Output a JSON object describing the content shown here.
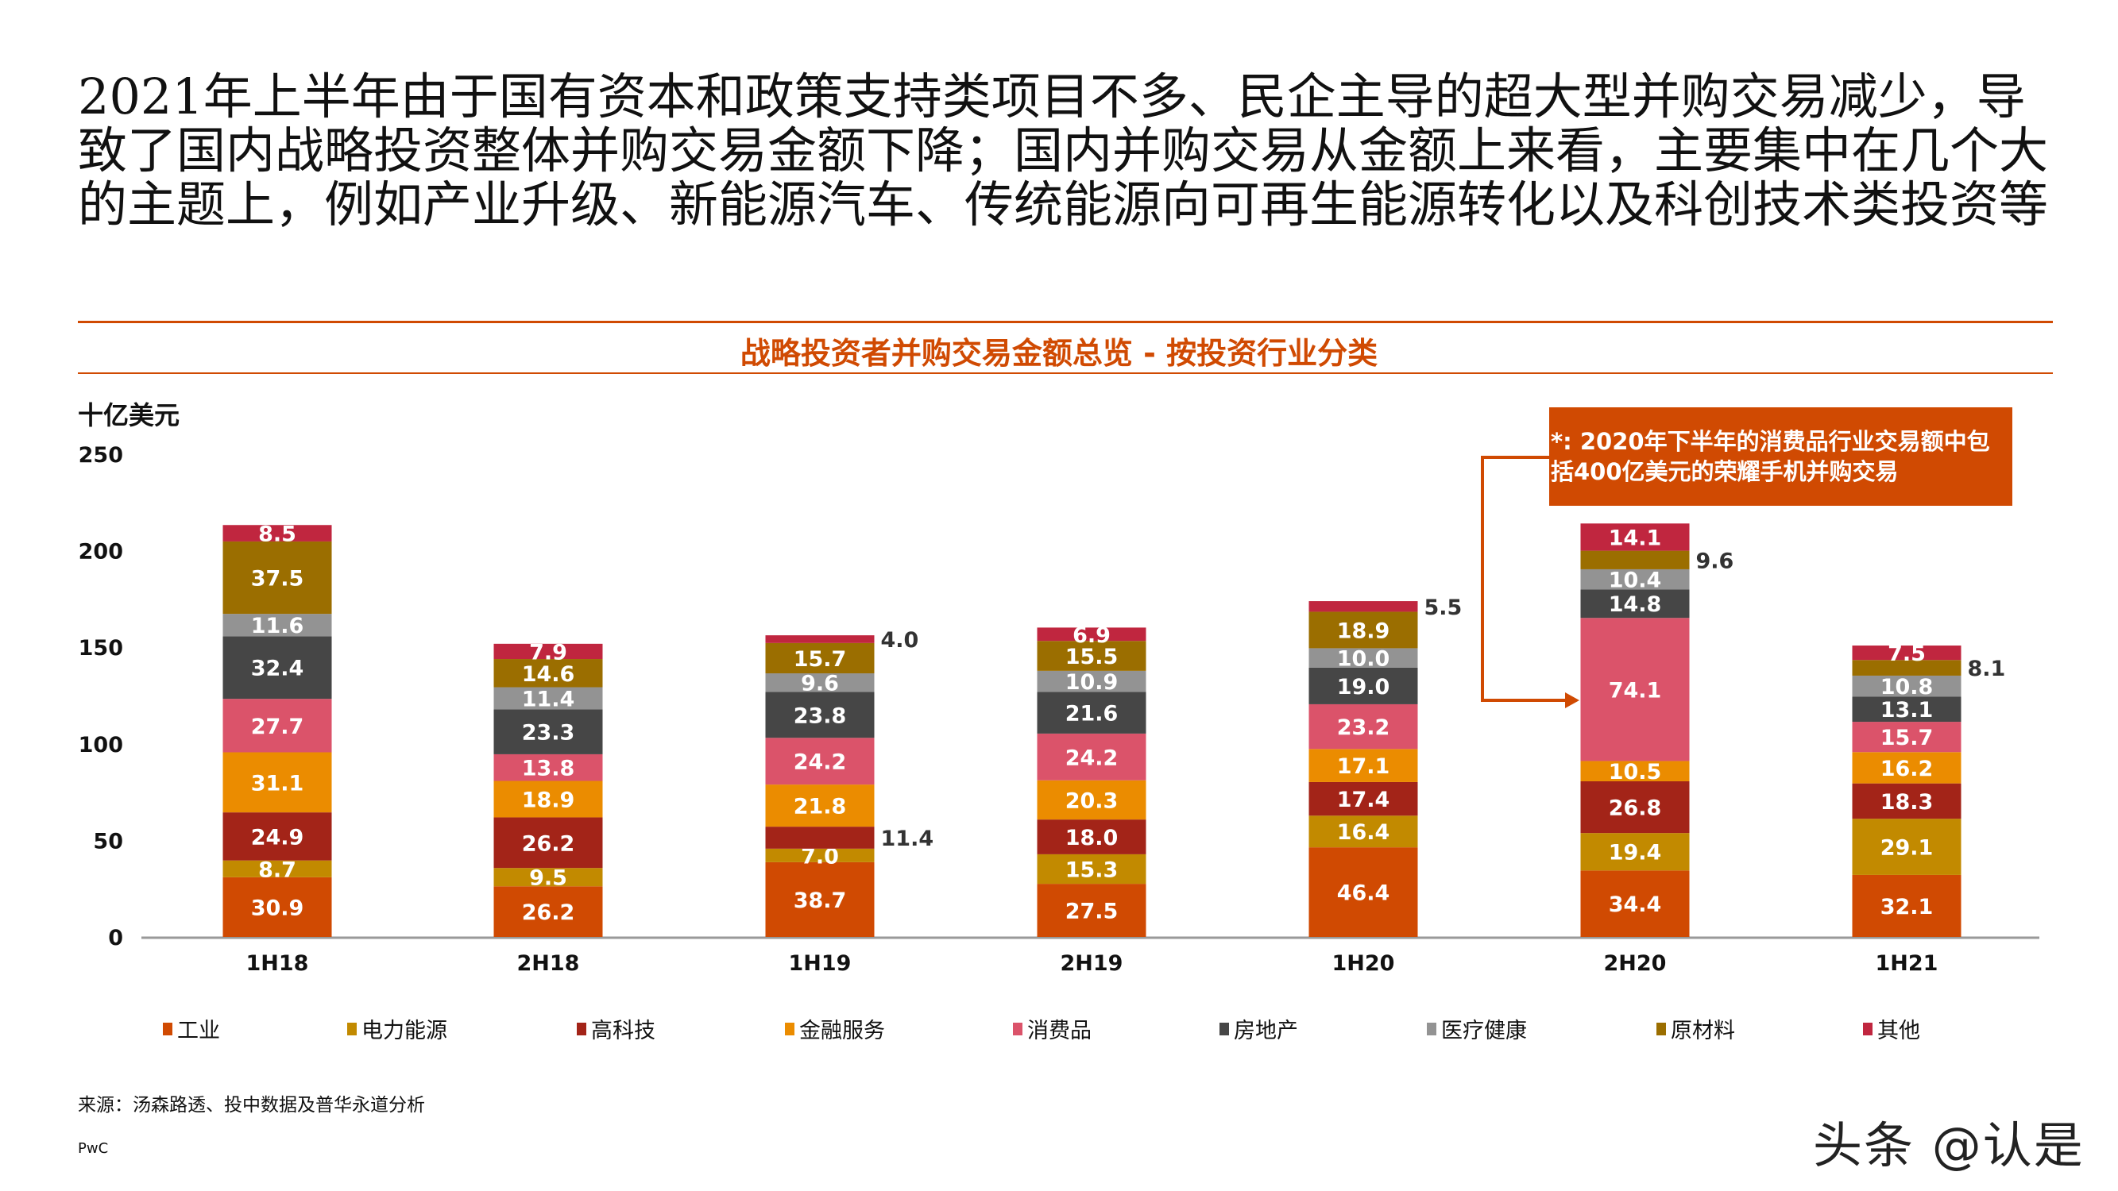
{
  "headline": "2021年上半年由于国有资本和政策支持类项目不多、民企主导的超大型并购交易减少，导致了国内战略投资整体并购交易金额下降；国内并购交易从金额上来看，主要集中在几个大的主题上，例如产业升级、新能源汽车、传统能源向可再生能源转化以及科创技术类投资等",
  "callout": "*: 2020年下半年的消费品行业交易额中包括400亿美元的荣耀手机并购交易",
  "source": "来源：汤森路透、投中数据及普华永道分析",
  "brand": "PwC",
  "watermark": "头条 @认是",
  "chart_data": {
    "type": "bar",
    "stacked": true,
    "title": "战略投资者并购交易金额总览 - 按投资行业分类",
    "ylabel": "十亿美元",
    "xlabel": "",
    "ylim": [
      0,
      250
    ],
    "yticks": [
      0,
      50,
      100,
      150,
      200,
      250
    ],
    "grid": false,
    "legend_position": "bottom",
    "categories": [
      "1H18",
      "2H18",
      "1H19",
      "2H19",
      "1H20",
      "2H20",
      "1H21"
    ],
    "series": [
      {
        "name": "工业",
        "color": "#D04A02",
        "values": [
          30.9,
          26.2,
          38.7,
          27.5,
          46.4,
          34.4,
          32.1
        ]
      },
      {
        "name": "电力能源",
        "color": "#C28A00",
        "values": [
          8.7,
          9.5,
          7.0,
          15.3,
          16.4,
          19.4,
          29.1
        ]
      },
      {
        "name": "高科技",
        "color": "#A32418",
        "values": [
          24.9,
          26.2,
          11.4,
          18.0,
          17.4,
          26.8,
          18.3
        ]
      },
      {
        "name": "金融服务",
        "color": "#EB8C00",
        "values": [
          31.1,
          18.9,
          21.8,
          20.3,
          17.1,
          10.5,
          16.2
        ]
      },
      {
        "name": "消费品",
        "color": "#DB536A",
        "values": [
          27.7,
          13.8,
          24.2,
          24.2,
          23.2,
          74.1,
          15.7
        ]
      },
      {
        "name": "房地产",
        "color": "#464646",
        "values": [
          32.4,
          23.3,
          23.8,
          21.6,
          19.0,
          14.8,
          13.1
        ]
      },
      {
        "name": "医疗健康",
        "color": "#939393",
        "values": [
          11.6,
          11.4,
          9.6,
          10.9,
          10.0,
          10.4,
          10.8
        ]
      },
      {
        "name": "原材料",
        "color": "#9B6E00",
        "values": [
          37.5,
          14.6,
          15.7,
          15.5,
          18.9,
          9.6,
          8.1
        ]
      },
      {
        "name": "其他",
        "color": "#C0263F",
        "values": [
          8.5,
          7.9,
          4.0,
          6.9,
          5.5,
          14.1,
          7.5
        ]
      }
    ]
  }
}
